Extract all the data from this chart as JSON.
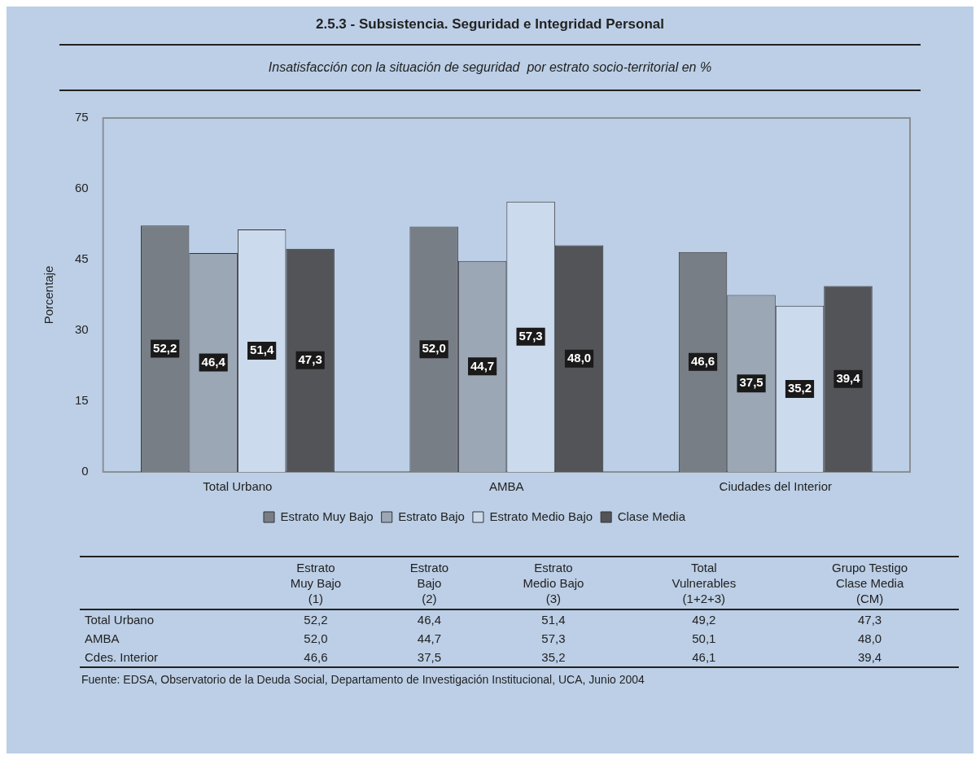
{
  "chart_data": {
    "type": "bar",
    "title": "2.5.3 - Subsistencia. Seguridad e Integridad Personal",
    "subtitle": "Insatisfacción con la situación de seguridad  por estrato socio-territorial en %",
    "ylabel": "Porcentaje",
    "categories": [
      "Total Urbano",
      "AMBA",
      "Ciudades del Interior"
    ],
    "series": [
      {
        "name": "Estrato Muy Bajo",
        "color": "#787e86",
        "values": [
          52.2,
          52.0,
          46.6
        ],
        "value_labels": [
          "52,2",
          "52,0",
          "46,6"
        ]
      },
      {
        "name": "Estrato Bajo",
        "color": "#9ca7b6",
        "values": [
          46.4,
          44.7,
          37.5
        ],
        "value_labels": [
          "46,4",
          "44,7",
          "37,5"
        ]
      },
      {
        "name": "Estrato Medio Bajo",
        "color": "#ccdaed",
        "values": [
          51.4,
          57.3,
          35.2
        ],
        "value_labels": [
          "51,4",
          "57,3",
          "35,2"
        ]
      },
      {
        "name": "Clase Media",
        "color": "#525458",
        "values": [
          47.3,
          48.0,
          39.4
        ],
        "value_labels": [
          "47,3",
          "48,0",
          "39,4"
        ]
      }
    ],
    "ylim": [
      0,
      75
    ],
    "yticks": [
      0,
      15,
      30,
      45,
      60,
      75
    ],
    "grid": false,
    "legend": "bottom",
    "annotations": [
      "Estrato\nMuy Bajo\n(1)",
      "Estrato\nBajo\n(2)",
      "Estrato\nMedio Bajo\n(3)",
      "Total\nVulnerables\n(1+2+3)",
      "Grupo Testigo\nClase Media\n(CM)",
      "Total Urbano",
      "52,2",
      "46,4",
      "51,4",
      "49,2",
      "47,3",
      "AMBA",
      "52,0",
      "44,7",
      "57,3",
      "50,1",
      "48,0",
      "Cdes. Interior",
      "46,6",
      "37,5",
      "35,2",
      "46,1",
      "39,4",
      "Fuente: EDSA, Observatorio de la Deuda Social, Departamento de Investigación Institucional, UCA, Junio 2004"
    ]
  }
}
